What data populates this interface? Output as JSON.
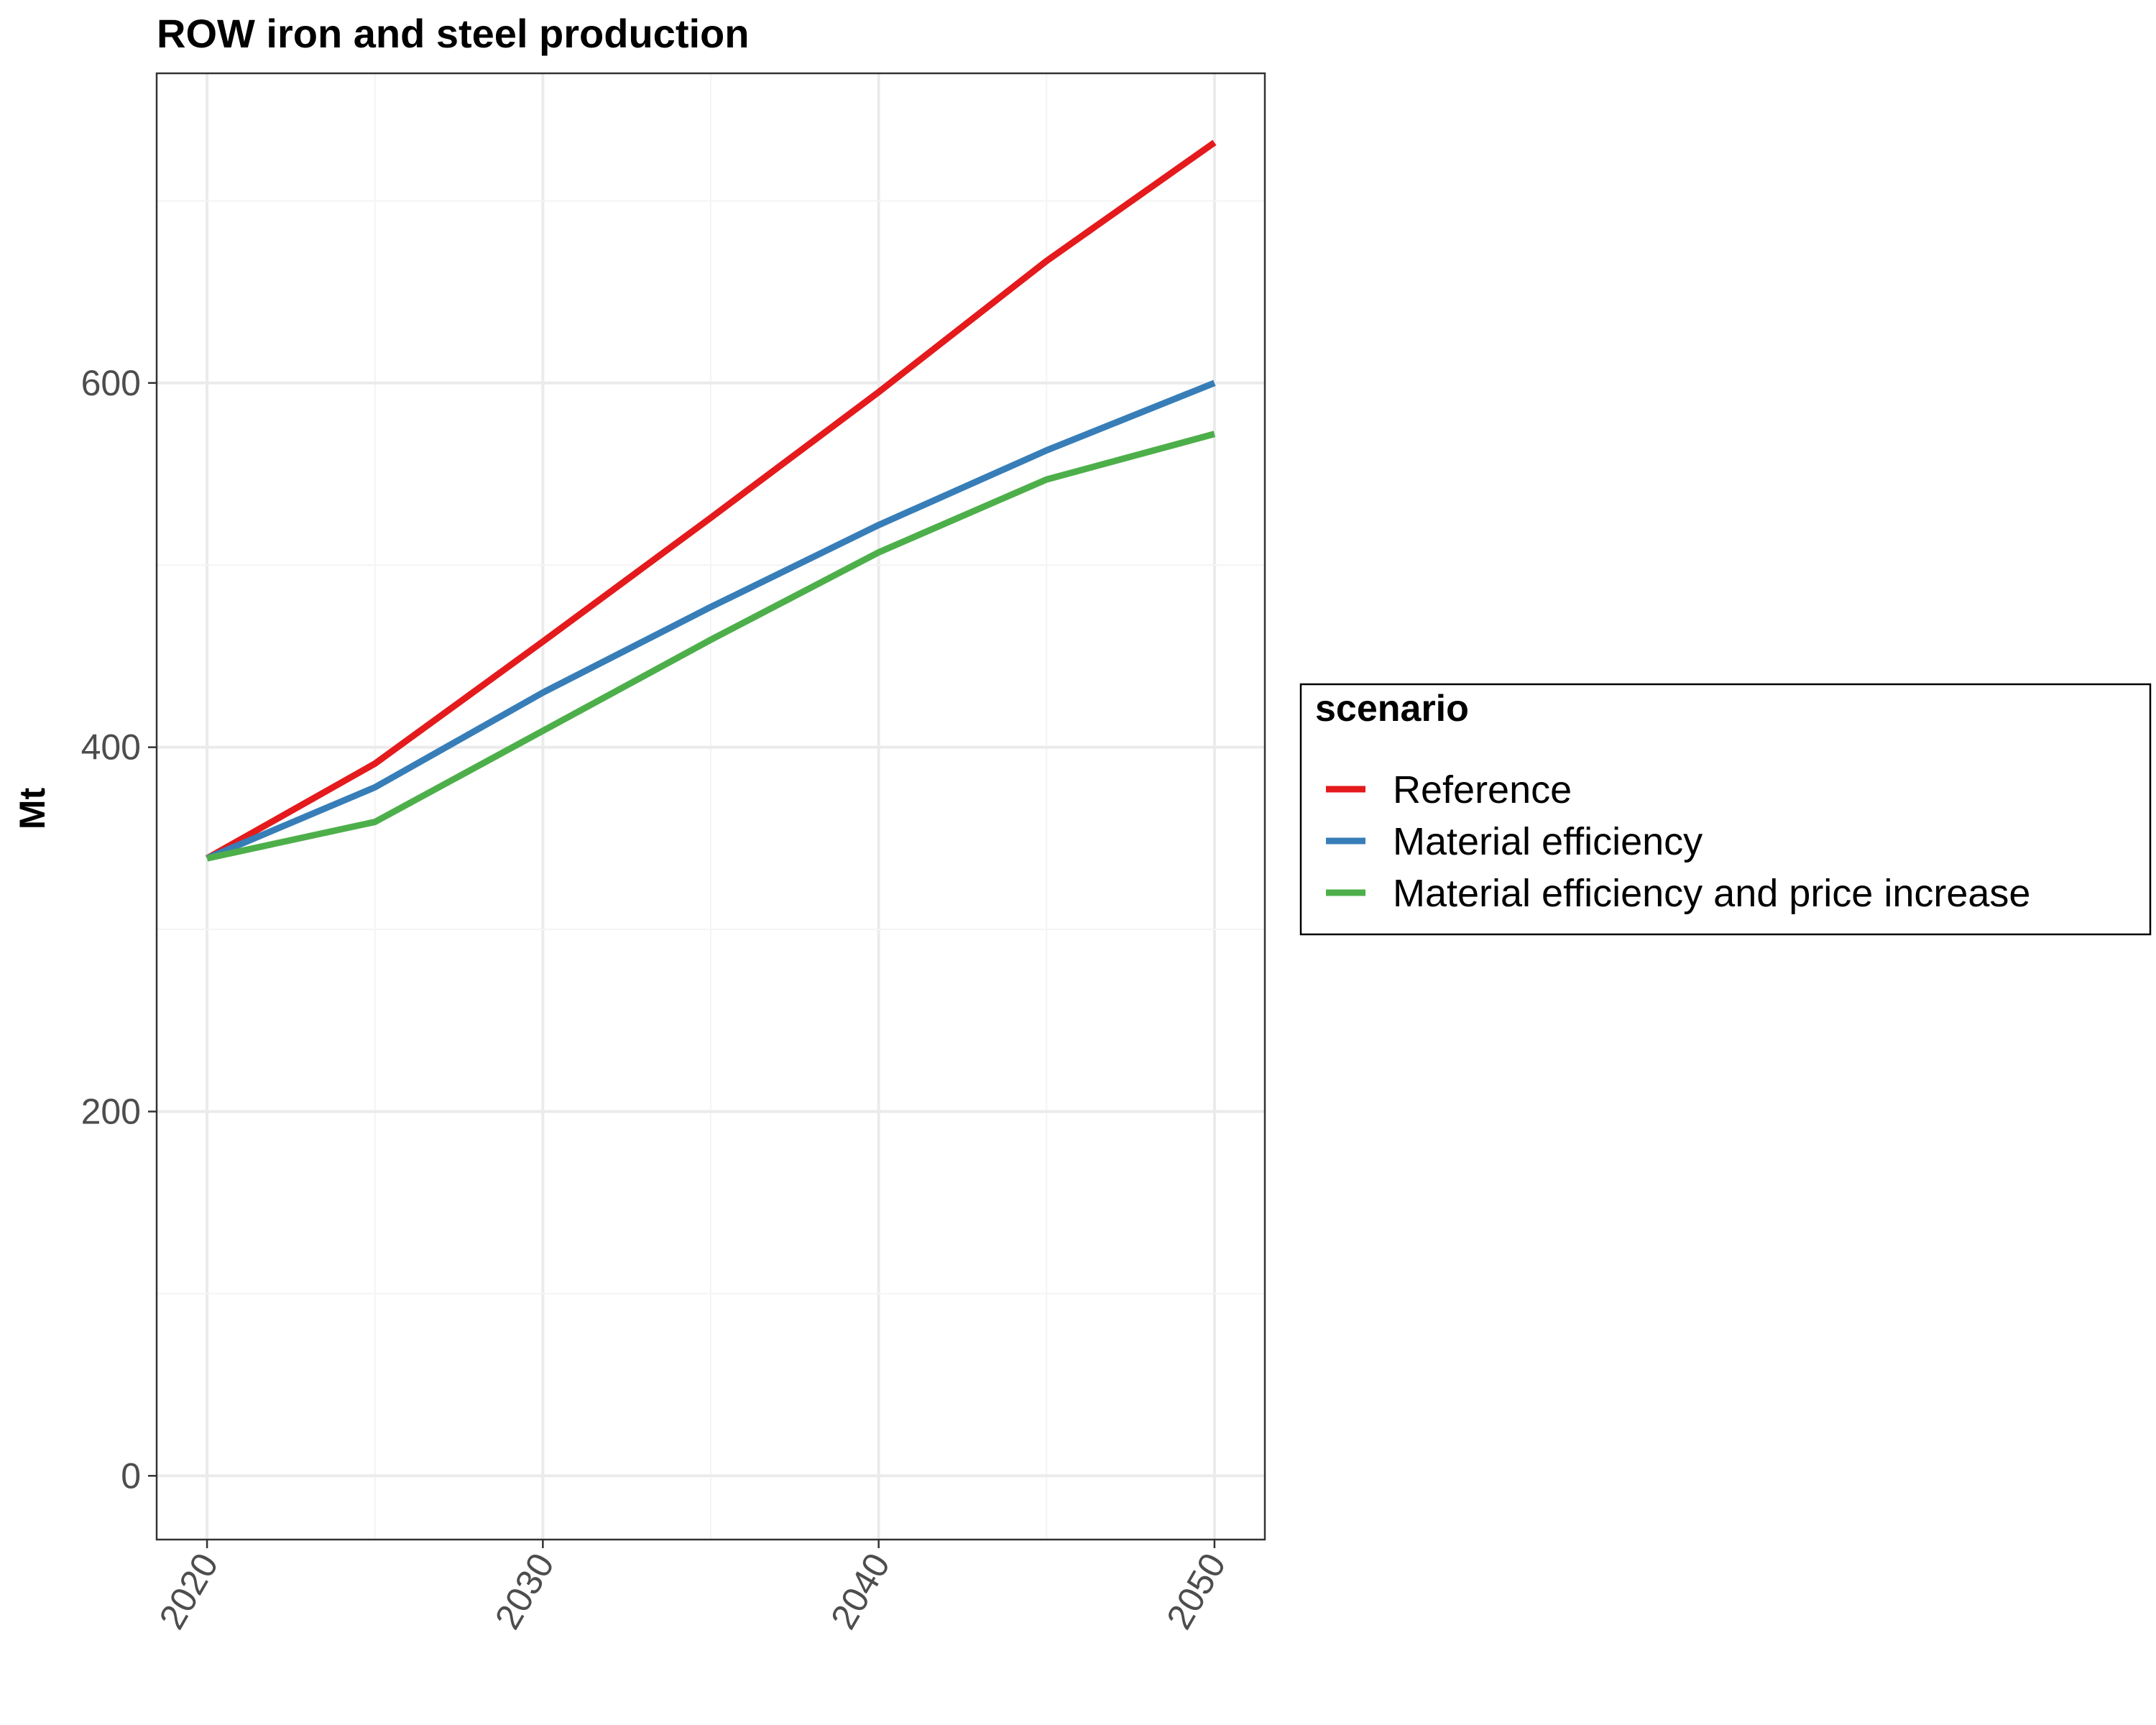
{
  "chart_data": {
    "type": "line",
    "title": "ROW  iron and steel production",
    "xlabel": "",
    "ylabel": "Mt",
    "x": [
      2020,
      2025,
      2030,
      2035,
      2040,
      2045,
      2050
    ],
    "x_ticks": [
      2020,
      2030,
      2040,
      2050
    ],
    "y_ticks": [
      0,
      200,
      400,
      600
    ],
    "xlim": [
      2018.5,
      2051.5
    ],
    "ylim": [
      -35,
      770
    ],
    "grid": true,
    "legend_position": "right",
    "legend_title": "scenario",
    "series": [
      {
        "name": "Reference",
        "color": "#e41a1c",
        "values": [
          339,
          391,
          458,
          526,
          595,
          667,
          732
        ]
      },
      {
        "name": "Material efficiency",
        "color": "#377eb8",
        "values": [
          339,
          378,
          430,
          477,
          522,
          563,
          600
        ]
      },
      {
        "name": "Material efficiency and price increase",
        "color": "#4daf4a",
        "values": [
          339,
          359,
          409,
          459,
          507,
          547,
          572
        ]
      }
    ]
  }
}
